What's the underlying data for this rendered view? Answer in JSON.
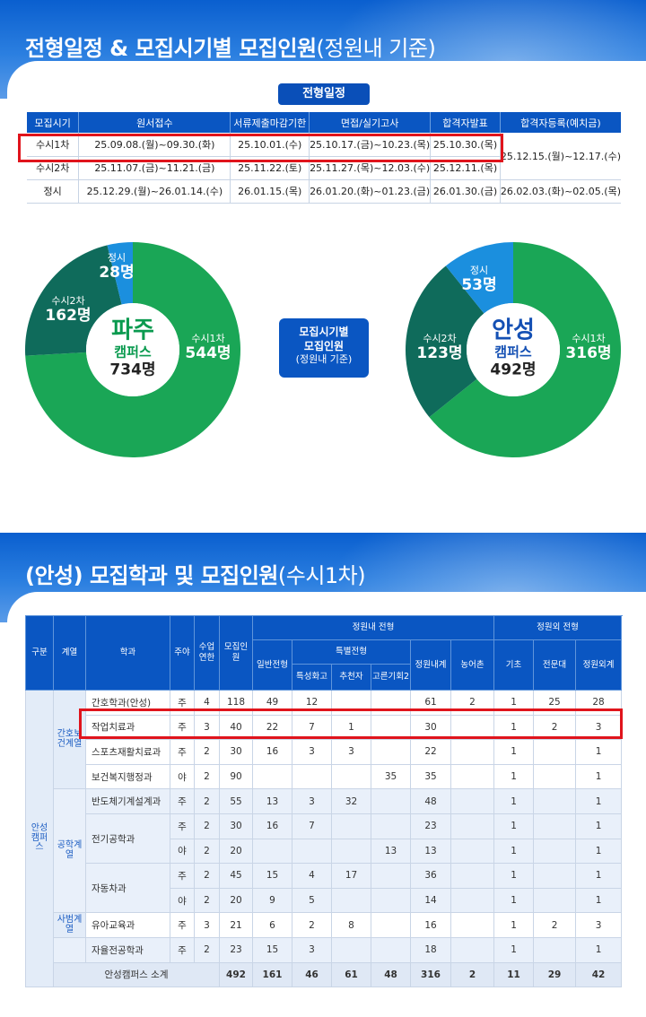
{
  "section1": {
    "title_bold": "전형일정 & 모집시기별 모집인원",
    "title_light": "(정원내 기준)"
  },
  "schedule": {
    "label": "전형일정",
    "headers": [
      "모집시기",
      "원서접수",
      "서류제출마감기한",
      "면접/실기고사",
      "합격자발표",
      "합격자등록(예치금)"
    ],
    "rows": [
      [
        "수시1차",
        "25.09.08.(월)~09.30.(화)",
        "25.10.01.(수)",
        "25.10.17.(금)~10.23.(목)",
        "25.10.30.(목)"
      ],
      [
        "수시2차",
        "25.11.07.(금)~11.21.(금)",
        "25.11.22.(토)",
        "25.11.27.(목)~12.03.(수)",
        "25.12.11.(목)"
      ],
      [
        "정시",
        "25.12.29.(월)~26.01.14.(수)",
        "26.01.15.(목)",
        "26.01.20.(화)~01.23.(금)",
        "26.01.30.(금)",
        "26.02.03.(화)~02.05.(목)"
      ]
    ],
    "susi_registration": "25.12.15.(월)~12.17.(수)"
  },
  "middle_box": {
    "line1": "모집시기별",
    "line2": "모집인원",
    "line3": "(정원내 기준)"
  },
  "campuses": [
    {
      "name": "파주",
      "sub": "캠퍼스",
      "total": "734명",
      "name_color": "#0a9a4f",
      "slices": [
        {
          "label": "수시1차",
          "value": 544,
          "text": "544명",
          "color": "#1aa656"
        },
        {
          "label": "수시2차",
          "value": 162,
          "text": "162명",
          "color": "#0f6b5b"
        },
        {
          "label": "정시",
          "value": 28,
          "text": "28명",
          "color": "#1b8fde"
        }
      ]
    },
    {
      "name": "안성",
      "sub": "캠퍼스",
      "total": "492명",
      "name_color": "#1450b4",
      "slices": [
        {
          "label": "수시1차",
          "value": 316,
          "text": "316명",
          "color": "#1aa656"
        },
        {
          "label": "수시2차",
          "value": 123,
          "text": "123명",
          "color": "#0f6b5b"
        },
        {
          "label": "정시",
          "value": 53,
          "text": "53명",
          "color": "#1b8fde"
        }
      ]
    }
  ],
  "section2": {
    "title_bold": "(안성) 모집학과 및 모집인원",
    "title_light": "(수시1차)"
  },
  "dept_table": {
    "h_gubun": "구분",
    "h_gyeyeol": "계열",
    "h_hakgwa": "학과",
    "h_juya": "주야",
    "h_years": "수업연한",
    "h_recruit": "모집인원",
    "h_inner": "정원내 전형",
    "h_outer": "정원외 전형",
    "h_general": "일반전형",
    "h_special": "특별전형",
    "h_sp1": "특성화고",
    "h_sp2": "추천자",
    "h_sp3": "고른기회2",
    "h_inner_total": "정원내계",
    "h_o1": "농어촌",
    "h_o2": "기초",
    "h_o3": "전문대",
    "h_outer_total": "정원외계",
    "campus_label": "안성캠퍼스",
    "group1": "간호보건계열",
    "group2": "공학계열",
    "group3": "사범계열",
    "rows": [
      {
        "dept": "간호학과(안성)",
        "c": [
          "주",
          "4",
          "118",
          "49",
          "12",
          "",
          "",
          "61",
          "2",
          "1",
          "25",
          "28"
        ]
      },
      {
        "dept": "작업치료과",
        "c": [
          "주",
          "3",
          "40",
          "22",
          "7",
          "1",
          "",
          "30",
          "",
          "1",
          "2",
          "3"
        ]
      },
      {
        "dept": "스포츠재활치료과",
        "c": [
          "주",
          "2",
          "30",
          "16",
          "3",
          "3",
          "",
          "22",
          "",
          "1",
          "",
          "1"
        ]
      },
      {
        "dept": "보건복지행정과",
        "c": [
          "야",
          "2",
          "90",
          "",
          "",
          "",
          "35",
          "35",
          "",
          "1",
          "",
          "1"
        ]
      },
      {
        "dept": "반도체기계설계과",
        "c": [
          "주",
          "2",
          "55",
          "13",
          "3",
          "32",
          "",
          "48",
          "",
          "1",
          "",
          "1"
        ]
      },
      {
        "dept": "전기공학과",
        "c": [
          "주",
          "2",
          "30",
          "16",
          "7",
          "",
          "",
          "23",
          "",
          "1",
          "",
          "1"
        ]
      },
      {
        "dept": "",
        "c": [
          "야",
          "2",
          "20",
          "",
          "",
          "",
          "13",
          "13",
          "",
          "1",
          "",
          "1"
        ]
      },
      {
        "dept": "자동차과",
        "c": [
          "주",
          "2",
          "45",
          "15",
          "4",
          "17",
          "",
          "36",
          "",
          "1",
          "",
          "1"
        ]
      },
      {
        "dept": "",
        "c": [
          "야",
          "2",
          "20",
          "9",
          "5",
          "",
          "",
          "14",
          "",
          "1",
          "",
          "1"
        ]
      },
      {
        "dept": "유아교육과",
        "c": [
          "주",
          "3",
          "21",
          "6",
          "2",
          "8",
          "",
          "16",
          "",
          "1",
          "2",
          "3"
        ]
      },
      {
        "dept": "자율전공학과",
        "c": [
          "주",
          "2",
          "23",
          "15",
          "3",
          "",
          "",
          "18",
          "",
          "1",
          "",
          "1"
        ]
      }
    ],
    "total_label": "안성캠퍼스 소계",
    "total": [
      "492",
      "161",
      "46",
      "61",
      "48",
      "316",
      "2",
      "11",
      "29",
      "42"
    ]
  }
}
